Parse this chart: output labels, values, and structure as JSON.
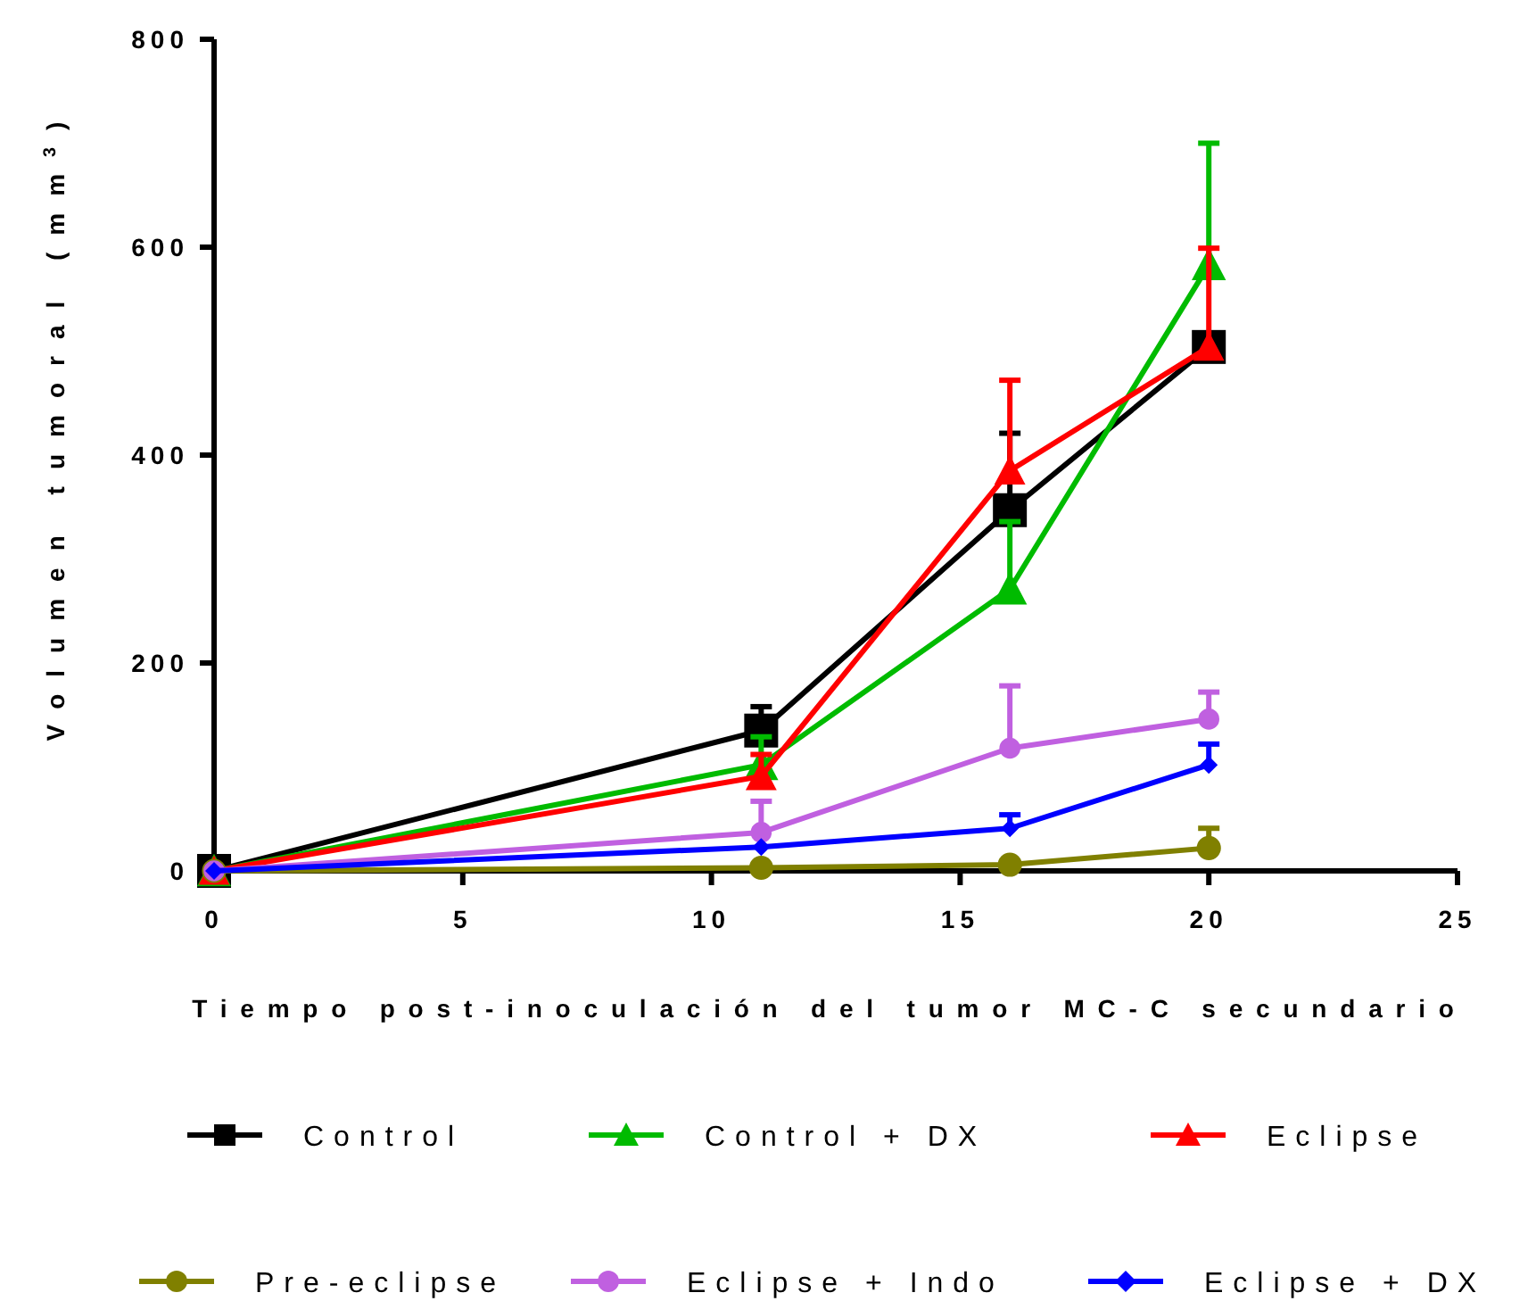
{
  "chart_data": {
    "type": "line",
    "xlabel": "Tiempo post-inoculación del tumor MC-C secundario",
    "ylabel": "Volumen tumoral (mm$^{3}$)",
    "x": [
      0,
      11,
      16,
      20
    ],
    "xlim": [
      0,
      25
    ],
    "xticks": [
      0,
      5,
      10,
      15,
      20,
      25
    ],
    "ylim": [
      0,
      800
    ],
    "yticks": [
      0,
      200,
      400,
      600,
      800
    ],
    "grid": false,
    "legend": "bottom",
    "line_style": "solid",
    "series": [
      {
        "name": "Control",
        "color": "#000000",
        "marker": "square",
        "values": [
          0,
          135,
          347,
          504
        ],
        "errors": [
          null,
          [
            135,
            158
          ],
          [
            347,
            421
          ],
          null
        ]
      },
      {
        "name": "Control + DX",
        "color": "#00bb00",
        "marker": "triangle",
        "values": [
          0,
          102,
          271,
          583
        ],
        "errors": [
          null,
          [
            102,
            129
          ],
          [
            271,
            336
          ],
          [
            583,
            700
          ]
        ]
      },
      {
        "name": "Eclipse",
        "color": "#ff0000",
        "marker": "triangle",
        "values": [
          0,
          91,
          385,
          504
        ],
        "errors": [
          null,
          [
            91,
            112
          ],
          [
            385,
            472
          ],
          [
            504,
            599
          ]
        ]
      },
      {
        "name": "Pre-eclipse",
        "color": "#808000",
        "marker": "circle",
        "values": [
          0,
          3,
          6,
          22
        ],
        "errors": [
          null,
          null,
          null,
          [
            22,
            41
          ]
        ]
      },
      {
        "name": "Eclipse + Indo",
        "color": "#c060e0",
        "marker": "circle",
        "values": [
          0,
          37,
          118,
          146
        ],
        "errors": [
          null,
          [
            37,
            67
          ],
          [
            118,
            178
          ],
          [
            146,
            172
          ]
        ]
      },
      {
        "name": "Eclipse + DX",
        "color": "#0000ff",
        "marker": "diamond",
        "values": [
          0,
          23,
          41,
          102
        ],
        "errors": [
          null,
          null,
          [
            41,
            54
          ],
          [
            102,
            122
          ]
        ]
      }
    ]
  }
}
